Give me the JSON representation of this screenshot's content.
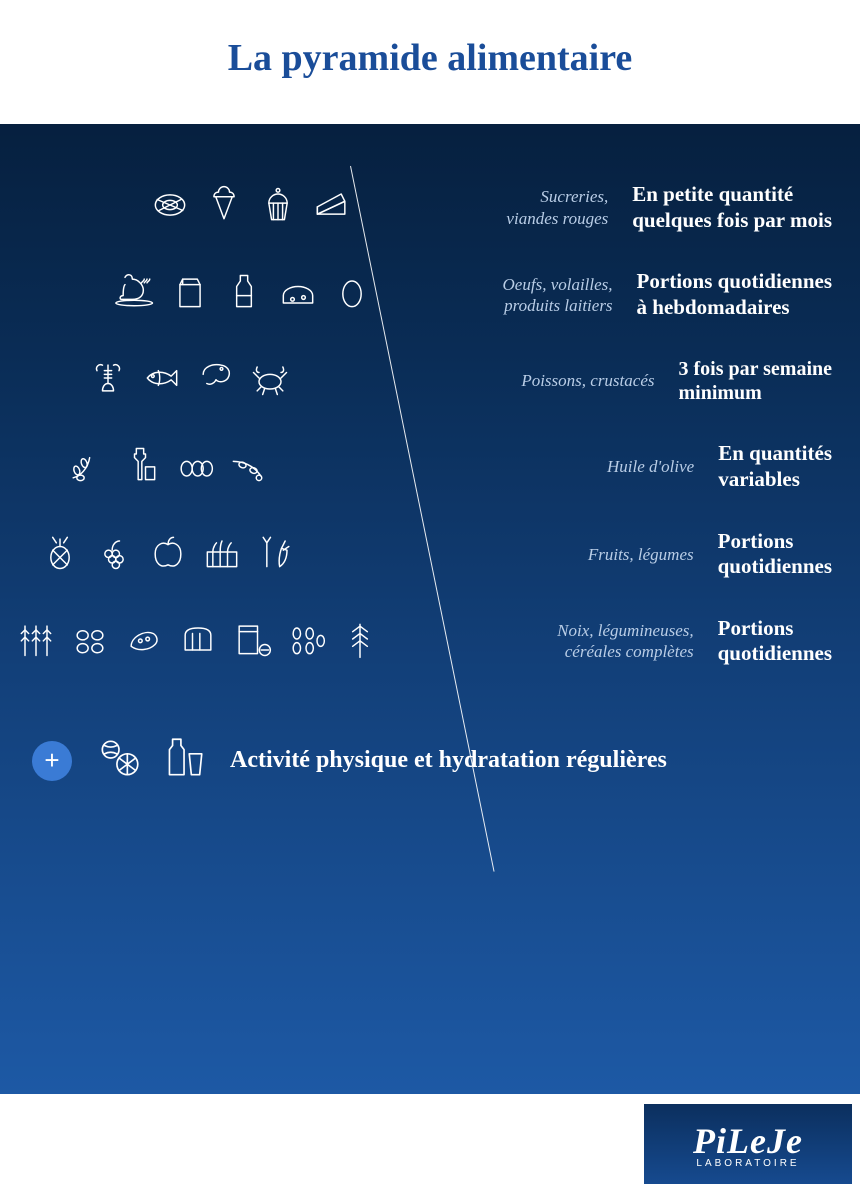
{
  "title": "La pyramide alimentaire",
  "title_color": "#1a4d99",
  "title_fontsize": 38,
  "header_bg": "#ffffff",
  "panel_gradient_top": "#06203f",
  "panel_gradient_bottom": "#1d59a5",
  "category_color": "#b9cde6",
  "category_fontsize": 17,
  "recommendation_color": "#ffffff",
  "levels": [
    {
      "category": "Sucreries,\nviandes rouges",
      "recommendation": "En petite quantité\nquelques fois par mois",
      "rec_fontsize": 21,
      "icons": [
        "steak-icon",
        "icecream-icon",
        "cupcake-icon",
        "cake-slice-icon"
      ]
    },
    {
      "category": "Oeufs, volailles,\nproduits laitiers",
      "recommendation": "Portions quotidiennes\nà hebdomadaires",
      "rec_fontsize": 21,
      "icons": [
        "chicken-icon",
        "milk-carton-icon",
        "milk-bottle-icon",
        "cheese-icon",
        "egg-icon"
      ]
    },
    {
      "category": "Poissons, crustacés",
      "recommendation": "3 fois par semaine\nminimum",
      "rec_fontsize": 20,
      "icons": [
        "lobster-icon",
        "fish-icon",
        "shrimp-icon",
        "crab-icon"
      ]
    },
    {
      "category": "Huile d'olive",
      "recommendation": "En quantités\nvariables",
      "rec_fontsize": 21,
      "icons": [
        "olive-branch-icon",
        "oil-bottle-icon",
        "olives-icon",
        "olive-branch2-icon"
      ]
    },
    {
      "category": "Fruits, légumes",
      "recommendation": "Portions\nquotidiennes",
      "rec_fontsize": 21,
      "icons": [
        "pineapple-icon",
        "grapes-icon",
        "apple-icon",
        "veg-crate-icon",
        "leek-carrot-icon"
      ]
    },
    {
      "category": "Noix, légumineuses,\ncéréales complètes",
      "recommendation": "Portions\nquotidiennes",
      "rec_fontsize": 21,
      "icons": [
        "wheat-icon",
        "nuts-icon",
        "beans-icon",
        "bread-icon",
        "cereal-box-icon",
        "seeds-icon",
        "wheat2-icon"
      ]
    }
  ],
  "base": {
    "plus_bg": "#3a7bd5",
    "text": "Activité physique et hydratation régulières",
    "text_fontsize": 24,
    "icons": [
      "sports-balls-icon",
      "water-bottle-glass-icon"
    ]
  },
  "logo": {
    "brand": "PiLeJe",
    "subline": "LABORATOIRE",
    "box_bg_top": "#0b2f5e",
    "box_bg_bottom": "#164a8f"
  }
}
